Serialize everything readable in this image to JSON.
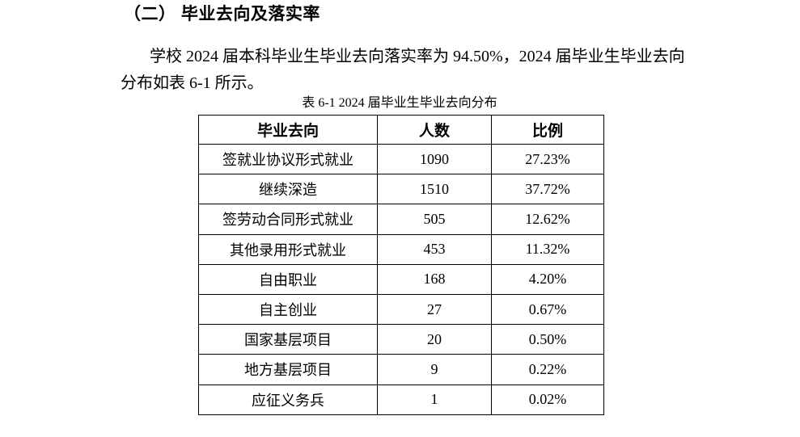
{
  "page": {
    "heading": "（二） 毕业去向及落实率",
    "paragraph": {
      "line1": "学校 2024 届本科毕业生毕业去向落实率为 94.50%，2024 届毕业生毕业去向",
      "line2": "分布如表 6-1 所示。"
    },
    "table_caption": "表 6-1 2024 届毕业生毕业去向分布"
  },
  "table": {
    "columns": [
      "毕业去向",
      "人数",
      "比例"
    ],
    "rows": [
      {
        "destination": "签就业协议形式就业",
        "count": "1090",
        "ratio": "27.23%"
      },
      {
        "destination": "继续深造",
        "count": "1510",
        "ratio": "37.72%"
      },
      {
        "destination": "签劳动合同形式就业",
        "count": "505",
        "ratio": "12.62%"
      },
      {
        "destination": "其他录用形式就业",
        "count": "453",
        "ratio": "11.32%"
      },
      {
        "destination": "自由职业",
        "count": "168",
        "ratio": "4.20%"
      },
      {
        "destination": "自主创业",
        "count": "27",
        "ratio": "0.67%"
      },
      {
        "destination": "国家基层项目",
        "count": "20",
        "ratio": "0.50%"
      },
      {
        "destination": "地方基层项目",
        "count": "9",
        "ratio": "0.22%"
      },
      {
        "destination": "应征义务兵",
        "count": "1",
        "ratio": "0.02%"
      }
    ]
  },
  "colors": {
    "text": "#000000",
    "background": "#ffffff",
    "table_border": "#000000"
  }
}
